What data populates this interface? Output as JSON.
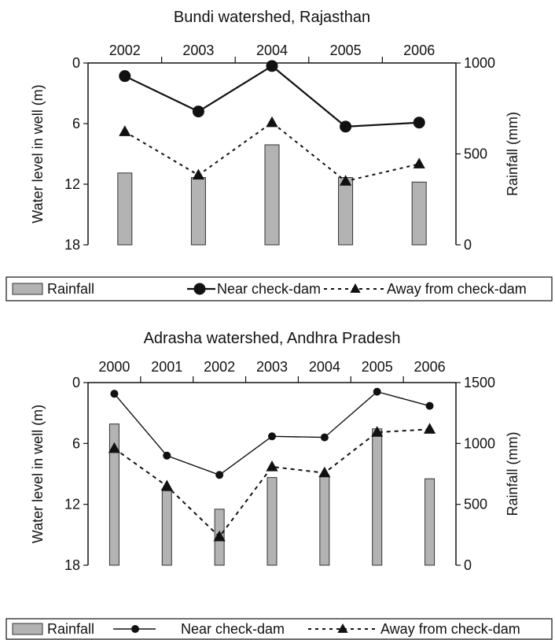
{
  "chart_data": [
    {
      "type": "bar",
      "title": "Bundi watershed, Rajasthan",
      "categories": [
        "2002",
        "2003",
        "2004",
        "2005",
        "2006"
      ],
      "ylabel": "Water level in well (m)",
      "ylim": [
        0,
        18
      ],
      "y_inverted": true,
      "yticks": [
        "0",
        "6",
        "12",
        "18"
      ],
      "y2label": "Rainfall (mm)",
      "y2lim": [
        0,
        1000
      ],
      "y2ticks": [
        "0",
        "500",
        "1000"
      ],
      "x_axis_position": "top",
      "legend_placement": "bottom",
      "series": [
        {
          "name": "Rainfall",
          "kind": "bar",
          "axis": "right",
          "values": [
            395,
            370,
            550,
            370,
            345
          ]
        },
        {
          "name": "Near check-dam",
          "kind": "line",
          "style": "solid",
          "marker": "circle",
          "axis": "left",
          "values": [
            1.3,
            4.8,
            0.3,
            6.3,
            5.9
          ]
        },
        {
          "name": "Away from check-dam",
          "kind": "line",
          "style": "dotted",
          "marker": "triangle",
          "axis": "left",
          "values": [
            6.8,
            11.1,
            5.9,
            11.7,
            10.0
          ]
        }
      ]
    },
    {
      "type": "bar",
      "title": "Adrasha watershed, Andhra Pradesh",
      "categories": [
        "2000",
        "2001",
        "2002",
        "2003",
        "2004",
        "2005",
        "2006"
      ],
      "ylabel": "Water level in well (m)",
      "ylim": [
        0,
        18
      ],
      "y_inverted": true,
      "yticks": [
        "0",
        "6",
        "12",
        "18"
      ],
      "y2label": "Rainfall (mm)",
      "y2lim": [
        0,
        1500
      ],
      "y2ticks": [
        "0",
        "500",
        "1000",
        "1500"
      ],
      "x_axis_position": "top",
      "legend_placement": "bottom",
      "series": [
        {
          "name": "Rainfall",
          "kind": "bar",
          "axis": "right",
          "values": [
            1160,
            610,
            460,
            720,
            730,
            1120,
            710
          ]
        },
        {
          "name": "Near check-dam",
          "kind": "line",
          "style": "solid",
          "marker": "small-circle",
          "axis": "left",
          "values": [
            1.1,
            7.2,
            9.1,
            5.3,
            5.4,
            0.9,
            2.3
          ]
        },
        {
          "name": "Away from check-dam",
          "kind": "line",
          "style": "dotted",
          "marker": "triangle",
          "axis": "left",
          "values": [
            6.5,
            10.2,
            15.2,
            8.3,
            8.9,
            4.9,
            4.6
          ]
        }
      ]
    }
  ]
}
